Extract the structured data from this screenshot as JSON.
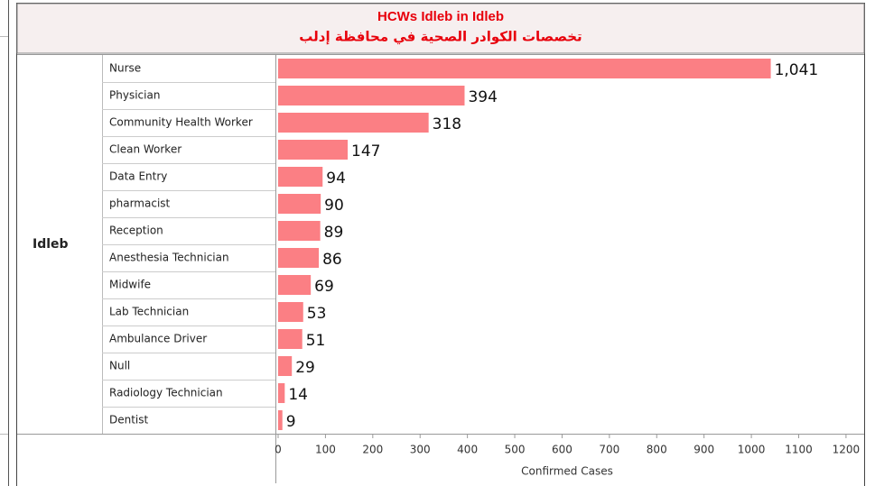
{
  "chart_data": {
    "type": "bar",
    "orientation": "horizontal",
    "title": "HCWs Idleb in Idleb",
    "subtitle": "تخصصات الكوادر الصحية في محافظة إدلب",
    "row_header": "Idleb",
    "categories": [
      "Nurse",
      "Physician",
      "Community Health Worker",
      "Clean Worker",
      "Data Entry",
      "pharmacist",
      "Reception",
      "Anesthesia Technician",
      "Midwife",
      "Lab Technician",
      "Ambulance Driver",
      "Null",
      "Radiology Technician",
      "Dentist"
    ],
    "values": [
      1041,
      394,
      318,
      147,
      94,
      90,
      89,
      86,
      69,
      53,
      51,
      29,
      14,
      9
    ],
    "value_labels": [
      "1,041",
      "394",
      "318",
      "147",
      "94",
      "90",
      "89",
      "86",
      "69",
      "53",
      "51",
      "29",
      "14",
      "9"
    ],
    "color": "#fb7f84",
    "x_label": "Confirmed Cases",
    "xlim": [
      0,
      1225
    ],
    "xticks": [
      0,
      100,
      200,
      300,
      400,
      500,
      600,
      700,
      800,
      900,
      1000,
      1100,
      1200
    ]
  }
}
